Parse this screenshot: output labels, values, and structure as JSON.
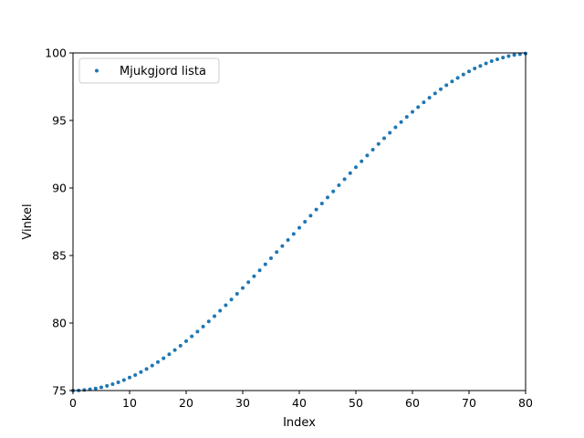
{
  "chart_data": {
    "type": "scatter",
    "title": "",
    "xlabel": "Index",
    "ylabel": "Vinkel",
    "xlim": [
      0,
      80
    ],
    "ylim": [
      75,
      100
    ],
    "xticks": [
      0,
      10,
      20,
      30,
      40,
      50,
      60,
      70,
      80
    ],
    "yticks": [
      75,
      80,
      85,
      90,
      95,
      100
    ],
    "grid": false,
    "legend_position": "upper-left",
    "series": [
      {
        "name": "Mjukgjord lista",
        "color": "#1f77b4",
        "x": [
          0,
          1,
          2,
          3,
          4,
          5,
          6,
          7,
          8,
          9,
          10,
          11,
          12,
          13,
          14,
          15,
          16,
          17,
          18,
          19,
          20,
          21,
          22,
          23,
          24,
          25,
          26,
          27,
          28,
          29,
          30,
          31,
          32,
          33,
          34,
          35,
          36,
          37,
          38,
          39,
          40,
          41,
          42,
          43,
          44,
          45,
          46,
          47,
          48,
          49,
          50,
          51,
          52,
          53,
          54,
          55,
          56,
          57,
          58,
          59,
          60,
          61,
          62,
          63,
          64,
          65,
          66,
          67,
          68,
          69,
          70,
          71,
          72,
          73,
          74,
          75,
          76,
          77,
          78,
          79,
          80
        ],
        "y": [
          75.0,
          75.01,
          75.04,
          75.09,
          75.15,
          75.24,
          75.35,
          75.47,
          75.61,
          75.78,
          75.96,
          76.15,
          76.37,
          76.6,
          76.85,
          77.11,
          77.39,
          77.69,
          78.0,
          78.32,
          78.66,
          79.01,
          79.37,
          79.74,
          80.12,
          80.51,
          80.91,
          81.32,
          81.74,
          82.16,
          82.59,
          83.02,
          83.46,
          83.9,
          84.35,
          84.8,
          85.25,
          85.7,
          86.15,
          86.6,
          87.05,
          87.5,
          87.95,
          88.4,
          88.85,
          89.3,
          89.75,
          90.2,
          90.65,
          91.1,
          91.54,
          91.98,
          92.41,
          92.84,
          93.26,
          93.68,
          94.09,
          94.49,
          94.88,
          95.26,
          95.63,
          95.99,
          96.34,
          96.68,
          97.0,
          97.31,
          97.61,
          97.89,
          98.15,
          98.4,
          98.63,
          98.85,
          99.04,
          99.22,
          99.39,
          99.53,
          99.65,
          99.76,
          99.85,
          99.91,
          99.96
        ]
      }
    ]
  }
}
